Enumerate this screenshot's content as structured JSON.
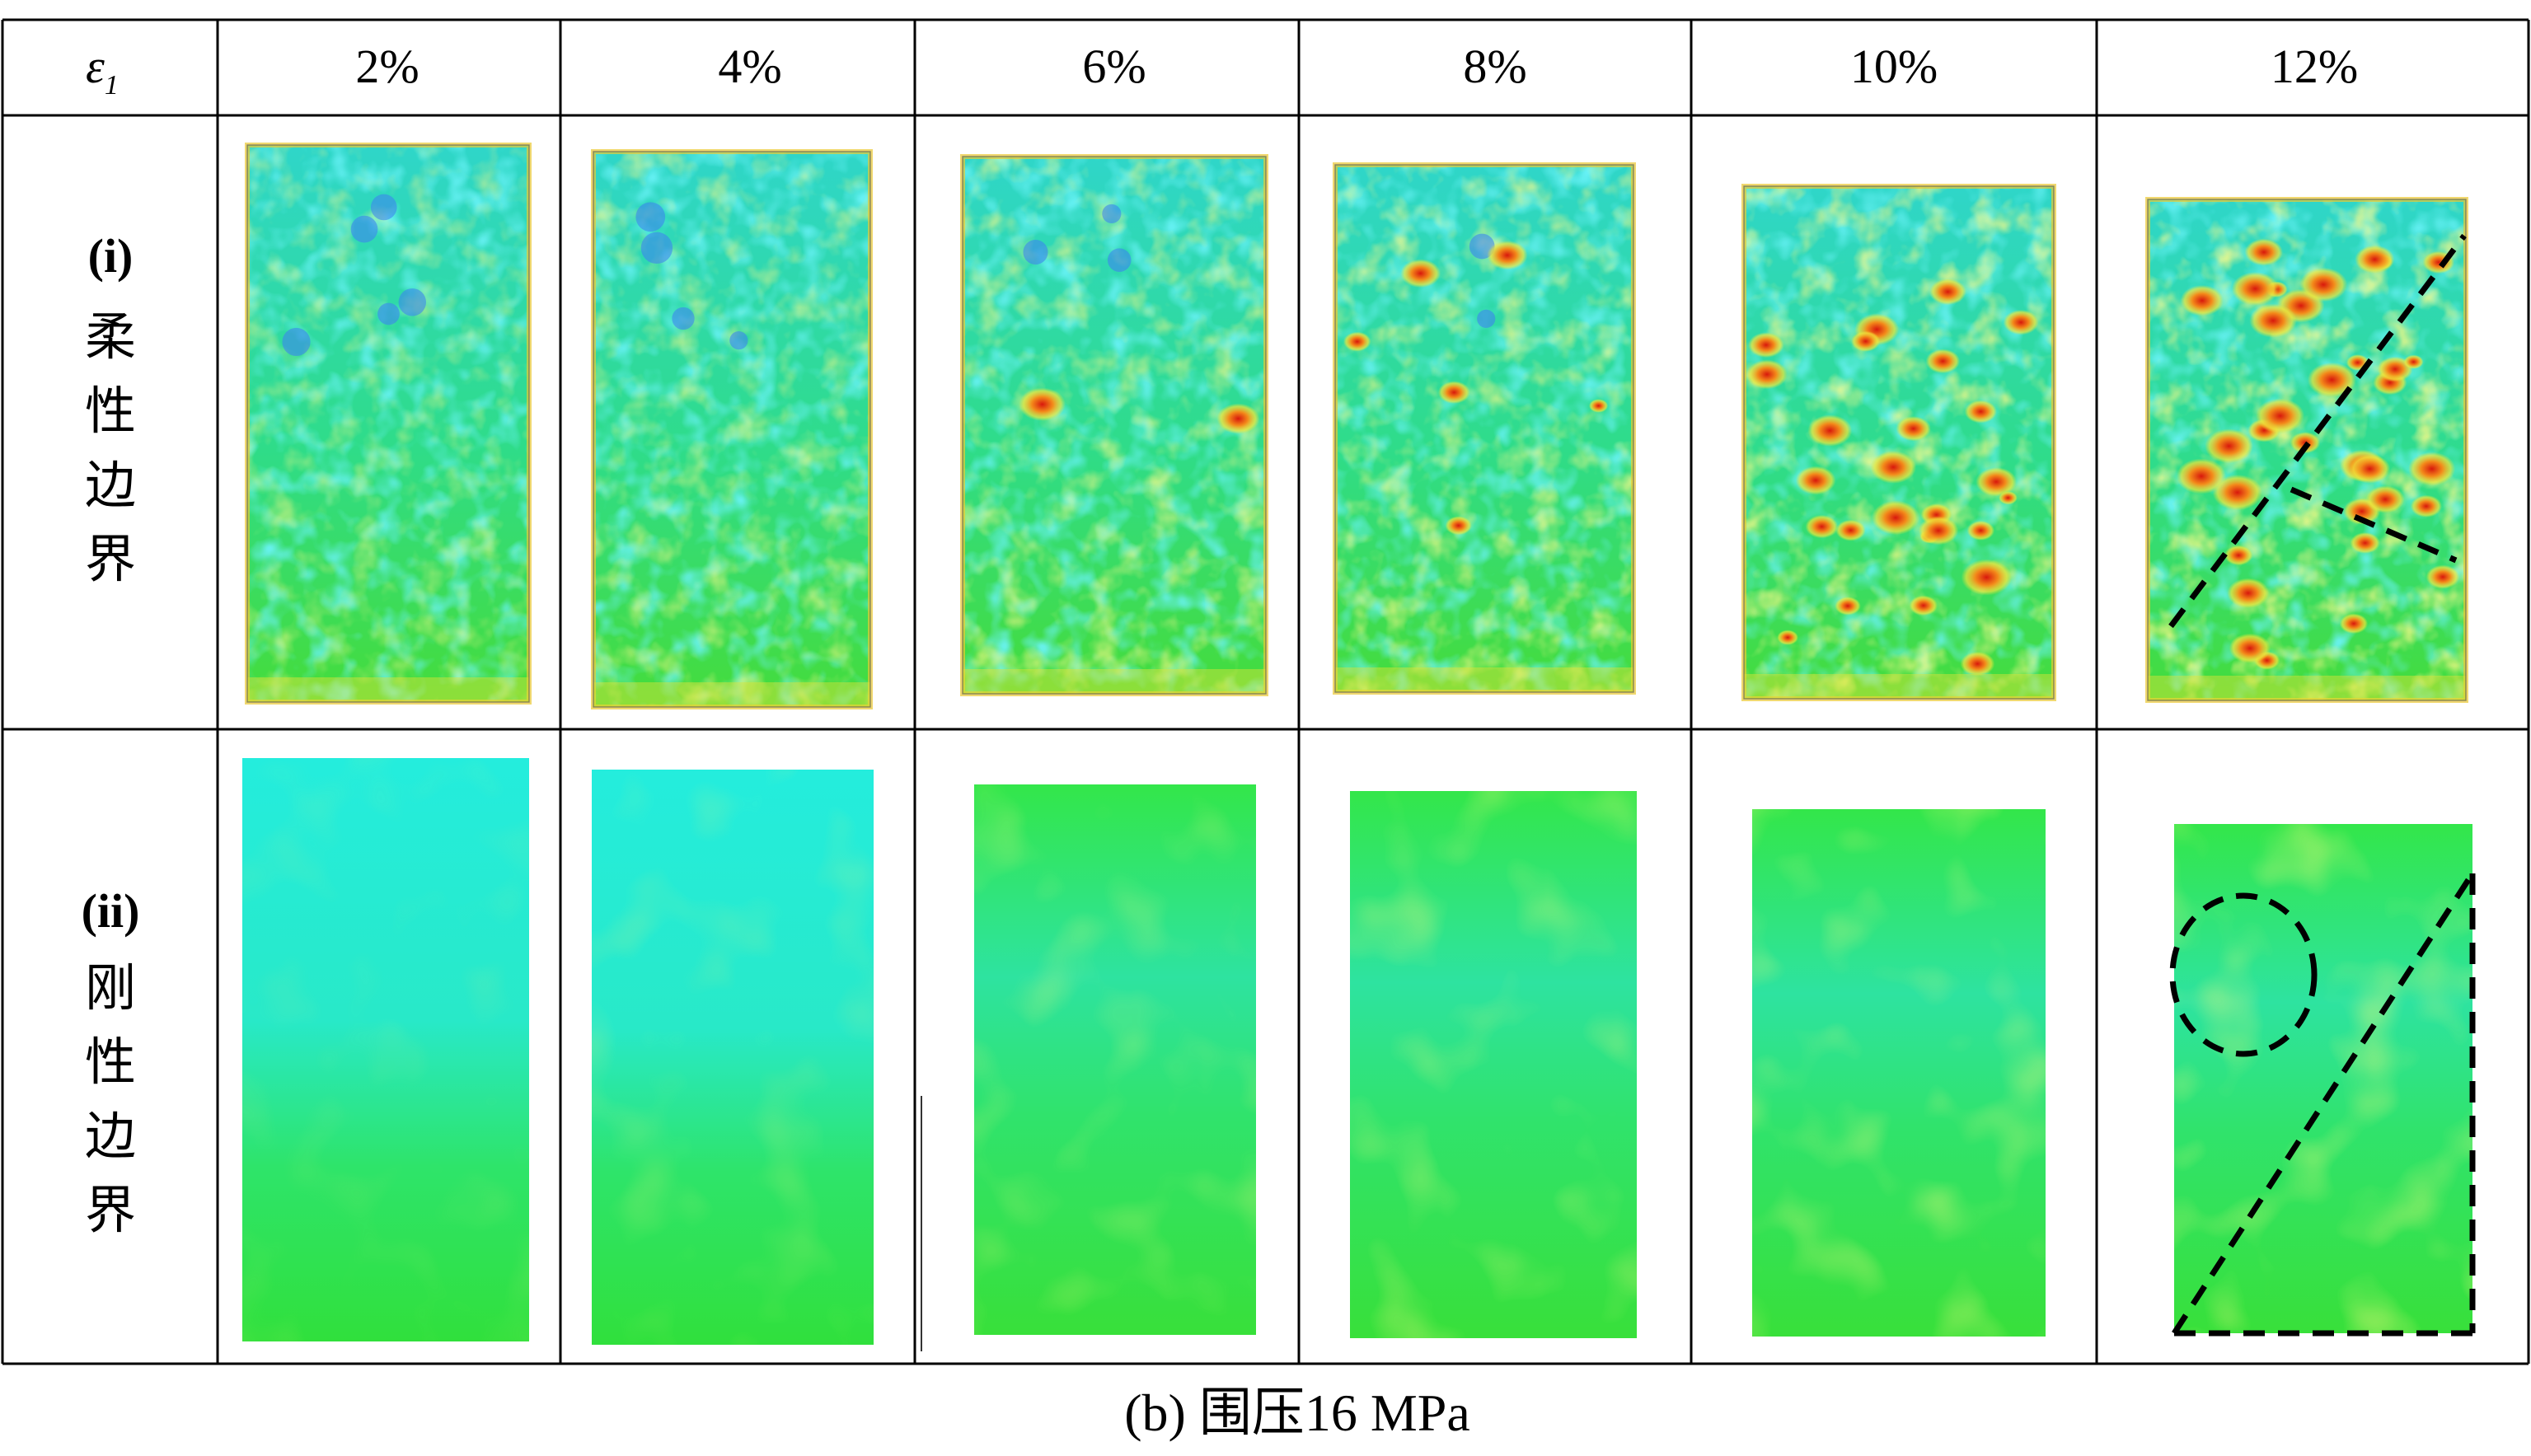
{
  "table": {
    "corner_symbol": "ε",
    "corner_subscript": "1",
    "strain_columns": [
      "2%",
      "4%",
      "6%",
      "8%",
      "10%",
      "12%"
    ],
    "rows": [
      {
        "roman": "(i)",
        "chars": [
          "柔",
          "性",
          "边",
          "界"
        ]
      },
      {
        "roman": "(ii)",
        "chars": [
          "刚",
          "性",
          "边",
          "界"
        ]
      }
    ]
  },
  "caption": "(b) 围压16 MPa",
  "colors": {
    "cyan": "#22e6d8",
    "green": "#2ee046",
    "yellow": "#e8e83a",
    "orange": "#f59a1e",
    "red": "#e32a12",
    "blue": "#3a7ef0",
    "grid": "#000000",
    "annotation": "#000000"
  }
}
